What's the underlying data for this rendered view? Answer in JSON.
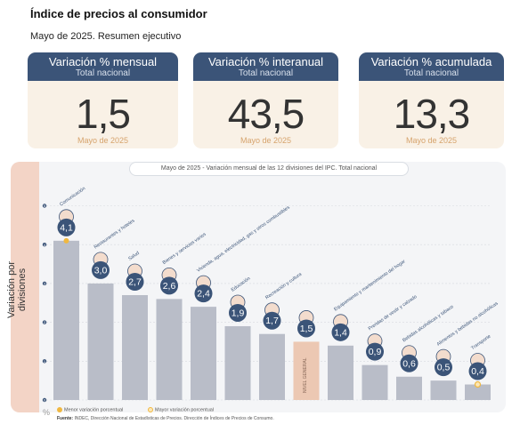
{
  "header": {
    "title": "Índice de precios al consumidor",
    "subtitle": "Mayo de 2025. Resumen ejecutivo"
  },
  "cards": [
    {
      "title": "Variación % mensual",
      "sub": "Total nacional",
      "value": "1,5",
      "date": "Mayo de 2025"
    },
    {
      "title": "Variación % interanual",
      "sub": "Total nacional",
      "value": "43,5",
      "date": "Mayo de 2025"
    },
    {
      "title": "Variación % acumulada",
      "sub": "Total nacional",
      "value": "13,3",
      "date": "Mayo de 2025"
    }
  ],
  "chart_title": {
    "date": "Mayo de 2025",
    "separator": "-",
    "text": "Variación mensual de las 12 divisiones del IPC. Total nacional"
  },
  "y_axis_label": "Variación por divisiones",
  "unit_label": "%",
  "legend": {
    "min_label": "Menor variación porcentual",
    "max_label": "Mayor variación porcentual"
  },
  "source": {
    "label": "Fuente:",
    "text": "INDEC, Dirección Nacional de Estadísticas de Precios. Dirección de Índices de Precios de Consumo."
  },
  "colors": {
    "card_header": "#3b5478",
    "bar": "#b9bdc8",
    "bar_highlight": "#ecc8b3",
    "circle": "#3b5478",
    "marker": "#f0b840"
  },
  "chart_data": {
    "type": "bar",
    "title": "Mayo de 2025 - Variación mensual de las 12 divisiones del IPC. Total nacional",
    "ylabel": "Variación por divisiones",
    "ylim": [
      0,
      5
    ],
    "yticks": [
      0,
      1,
      2,
      3,
      4,
      5
    ],
    "categories": [
      "Comunicación",
      "Restaurantes y hoteles",
      "Salud",
      "Bienes y servicios varios",
      "Vivienda, agua, electricidad, gas y otros combustibles",
      "Educación",
      "Recreación y cultura",
      "NIVEL GENERAL",
      "Equipamiento y mantenimiento del hogar",
      "Prendas de vestir y calzado",
      "Bebidas alcohólicas y tabaco",
      "Alimentos y bebidas no alcohólicas",
      "Transporte"
    ],
    "values": [
      4.1,
      3.0,
      2.7,
      2.6,
      2.4,
      1.9,
      1.7,
      1.5,
      1.4,
      0.9,
      0.6,
      0.5,
      0.4
    ],
    "value_labels": [
      "4,1",
      "3,0",
      "2,7",
      "2,6",
      "2,4",
      "1,9",
      "1,7",
      "1,5",
      "1,4",
      "0,9",
      "0,6",
      "0,5",
      "0,4"
    ],
    "highlight_index": 7,
    "max_index": 0,
    "min_index": 12,
    "icons": [
      "phone-icon",
      "plate-icon",
      "health-cross-icon",
      "scissors-icon",
      "bulb-icon",
      "book-icon",
      "hat-icon",
      "basket-icon",
      "pot-icon",
      "shirt-icon",
      "drink-icon",
      "food-icon",
      "bike-icon"
    ]
  }
}
